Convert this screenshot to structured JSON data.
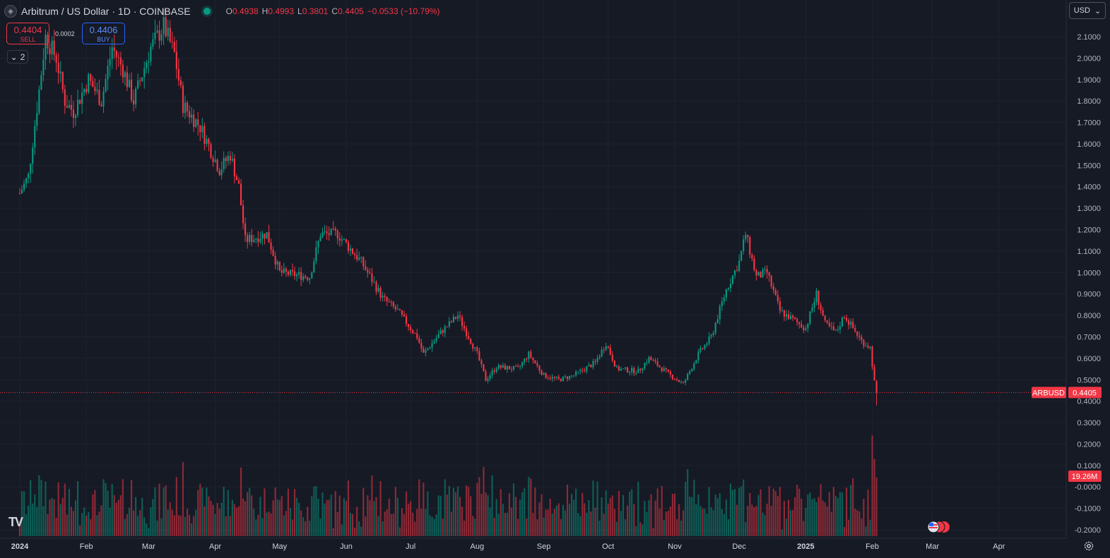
{
  "header": {
    "title": "Arbitrum / US Dollar · 1D · COINBASE",
    "ohlc": [
      {
        "k": "O",
        "v": "0.4938"
      },
      {
        "k": "H",
        "v": "0.4993"
      },
      {
        "k": "L",
        "v": "0.3801"
      },
      {
        "k": "C",
        "v": "0.4405"
      }
    ],
    "change": "−0.0533 (−10.79%)"
  },
  "trade": {
    "sell_price": "0.4404",
    "sell_label": "SELL",
    "buy_price": "0.4406",
    "buy_label": "BUY",
    "spread": "0.0002"
  },
  "indicators_toggle": {
    "count": "2"
  },
  "currency_selector": {
    "label": "USD"
  },
  "colors": {
    "up": "#089981",
    "down": "#f23645",
    "background": "#161a25",
    "grid": "#1f2330",
    "text": "#d1d4dc",
    "accent": "#2962ff"
  },
  "icons": {
    "settings": "gear-icon",
    "logo": "tradingview-logo-icon",
    "events": "economic-events-icon",
    "collapse": "chevron-down-icon"
  },
  "chart_data": {
    "type": "candlestick",
    "symbol": "ARBUSD",
    "last_price": 0.4405,
    "last_label": "ARBUSD",
    "last_value_label": "0.4405",
    "volume_label": "19.26M",
    "price_axis_ticks": [
      "2.1000",
      "2.0000",
      "1.9000",
      "1.8000",
      "1.7000",
      "1.6000",
      "1.5000",
      "1.4000",
      "1.3000",
      "1.2000",
      "1.1000",
      "1.0000",
      "0.9000",
      "0.8000",
      "0.7000",
      "0.6000",
      "0.5000",
      "0.4000",
      "0.3000",
      "0.2000",
      "0.1000",
      "-0.0000",
      "-0.1000",
      "-0.2000"
    ],
    "y_range": [
      -0.23,
      2.18
    ],
    "time_axis_labels": [
      "2024",
      "Feb",
      "Mar",
      "Apr",
      "May",
      "Jun",
      "Jul",
      "Aug",
      "Sep",
      "Oct",
      "Nov",
      "Dec",
      "2025",
      "Feb",
      "Mar",
      "Apr"
    ],
    "date_range": [
      "2024-01-01",
      "2025-04-30"
    ],
    "price_path": [
      {
        "date": "2024-01-01",
        "price": 1.37
      },
      {
        "date": "2024-01-05",
        "price": 1.45
      },
      {
        "date": "2024-01-10",
        "price": 1.85
      },
      {
        "date": "2024-01-13",
        "price": 2.1
      },
      {
        "date": "2024-01-18",
        "price": 2.0
      },
      {
        "date": "2024-01-22",
        "price": 1.8
      },
      {
        "date": "2024-01-26",
        "price": 1.75
      },
      {
        "date": "2024-02-02",
        "price": 1.9
      },
      {
        "date": "2024-02-08",
        "price": 1.8
      },
      {
        "date": "2024-02-13",
        "price": 2.05
      },
      {
        "date": "2024-02-18",
        "price": 1.95
      },
      {
        "date": "2024-02-23",
        "price": 1.8
      },
      {
        "date": "2024-03-02",
        "price": 2.05
      },
      {
        "date": "2024-03-08",
        "price": 2.15
      },
      {
        "date": "2024-03-13",
        "price": 2.02
      },
      {
        "date": "2024-03-17",
        "price": 1.78
      },
      {
        "date": "2024-03-25",
        "price": 1.68
      },
      {
        "date": "2024-04-03",
        "price": 1.48
      },
      {
        "date": "2024-04-08",
        "price": 1.55
      },
      {
        "date": "2024-04-12",
        "price": 1.4
      },
      {
        "date": "2024-04-15",
        "price": 1.15
      },
      {
        "date": "2024-04-25",
        "price": 1.18
      },
      {
        "date": "2024-05-01",
        "price": 1.0
      },
      {
        "date": "2024-05-15",
        "price": 0.98
      },
      {
        "date": "2024-05-20",
        "price": 1.18
      },
      {
        "date": "2024-05-28",
        "price": 1.18
      },
      {
        "date": "2024-06-08",
        "price": 1.05
      },
      {
        "date": "2024-06-18",
        "price": 0.88
      },
      {
        "date": "2024-06-25",
        "price": 0.82
      },
      {
        "date": "2024-07-04",
        "price": 0.7
      },
      {
        "date": "2024-07-07",
        "price": 0.62
      },
      {
        "date": "2024-07-15",
        "price": 0.72
      },
      {
        "date": "2024-07-23",
        "price": 0.8
      },
      {
        "date": "2024-08-01",
        "price": 0.62
      },
      {
        "date": "2024-08-05",
        "price": 0.5
      },
      {
        "date": "2024-08-10",
        "price": 0.56
      },
      {
        "date": "2024-08-20",
        "price": 0.55
      },
      {
        "date": "2024-08-25",
        "price": 0.62
      },
      {
        "date": "2024-09-01",
        "price": 0.52
      },
      {
        "date": "2024-09-08",
        "price": 0.5
      },
      {
        "date": "2024-09-15",
        "price": 0.52
      },
      {
        "date": "2024-09-25",
        "price": 0.58
      },
      {
        "date": "2024-09-30",
        "price": 0.67
      },
      {
        "date": "2024-10-05",
        "price": 0.55
      },
      {
        "date": "2024-10-15",
        "price": 0.54
      },
      {
        "date": "2024-10-20",
        "price": 0.6
      },
      {
        "date": "2024-10-30",
        "price": 0.52
      },
      {
        "date": "2024-11-05",
        "price": 0.48
      },
      {
        "date": "2024-11-12",
        "price": 0.62
      },
      {
        "date": "2024-11-18",
        "price": 0.7
      },
      {
        "date": "2024-11-25",
        "price": 0.92
      },
      {
        "date": "2024-12-01",
        "price": 1.05
      },
      {
        "date": "2024-12-04",
        "price": 1.18
      },
      {
        "date": "2024-12-09",
        "price": 0.98
      },
      {
        "date": "2024-12-14",
        "price": 1.0
      },
      {
        "date": "2024-12-20",
        "price": 0.82
      },
      {
        "date": "2025-01-01",
        "price": 0.74
      },
      {
        "date": "2025-01-06",
        "price": 0.9
      },
      {
        "date": "2025-01-10",
        "price": 0.76
      },
      {
        "date": "2025-01-15",
        "price": 0.72
      },
      {
        "date": "2025-01-19",
        "price": 0.8
      },
      {
        "date": "2025-01-27",
        "price": 0.68
      },
      {
        "date": "2025-01-31",
        "price": 0.65
      },
      {
        "date": "2025-02-02",
        "price": 0.49
      },
      {
        "date": "2025-02-03",
        "price": 0.4405
      }
    ]
  }
}
